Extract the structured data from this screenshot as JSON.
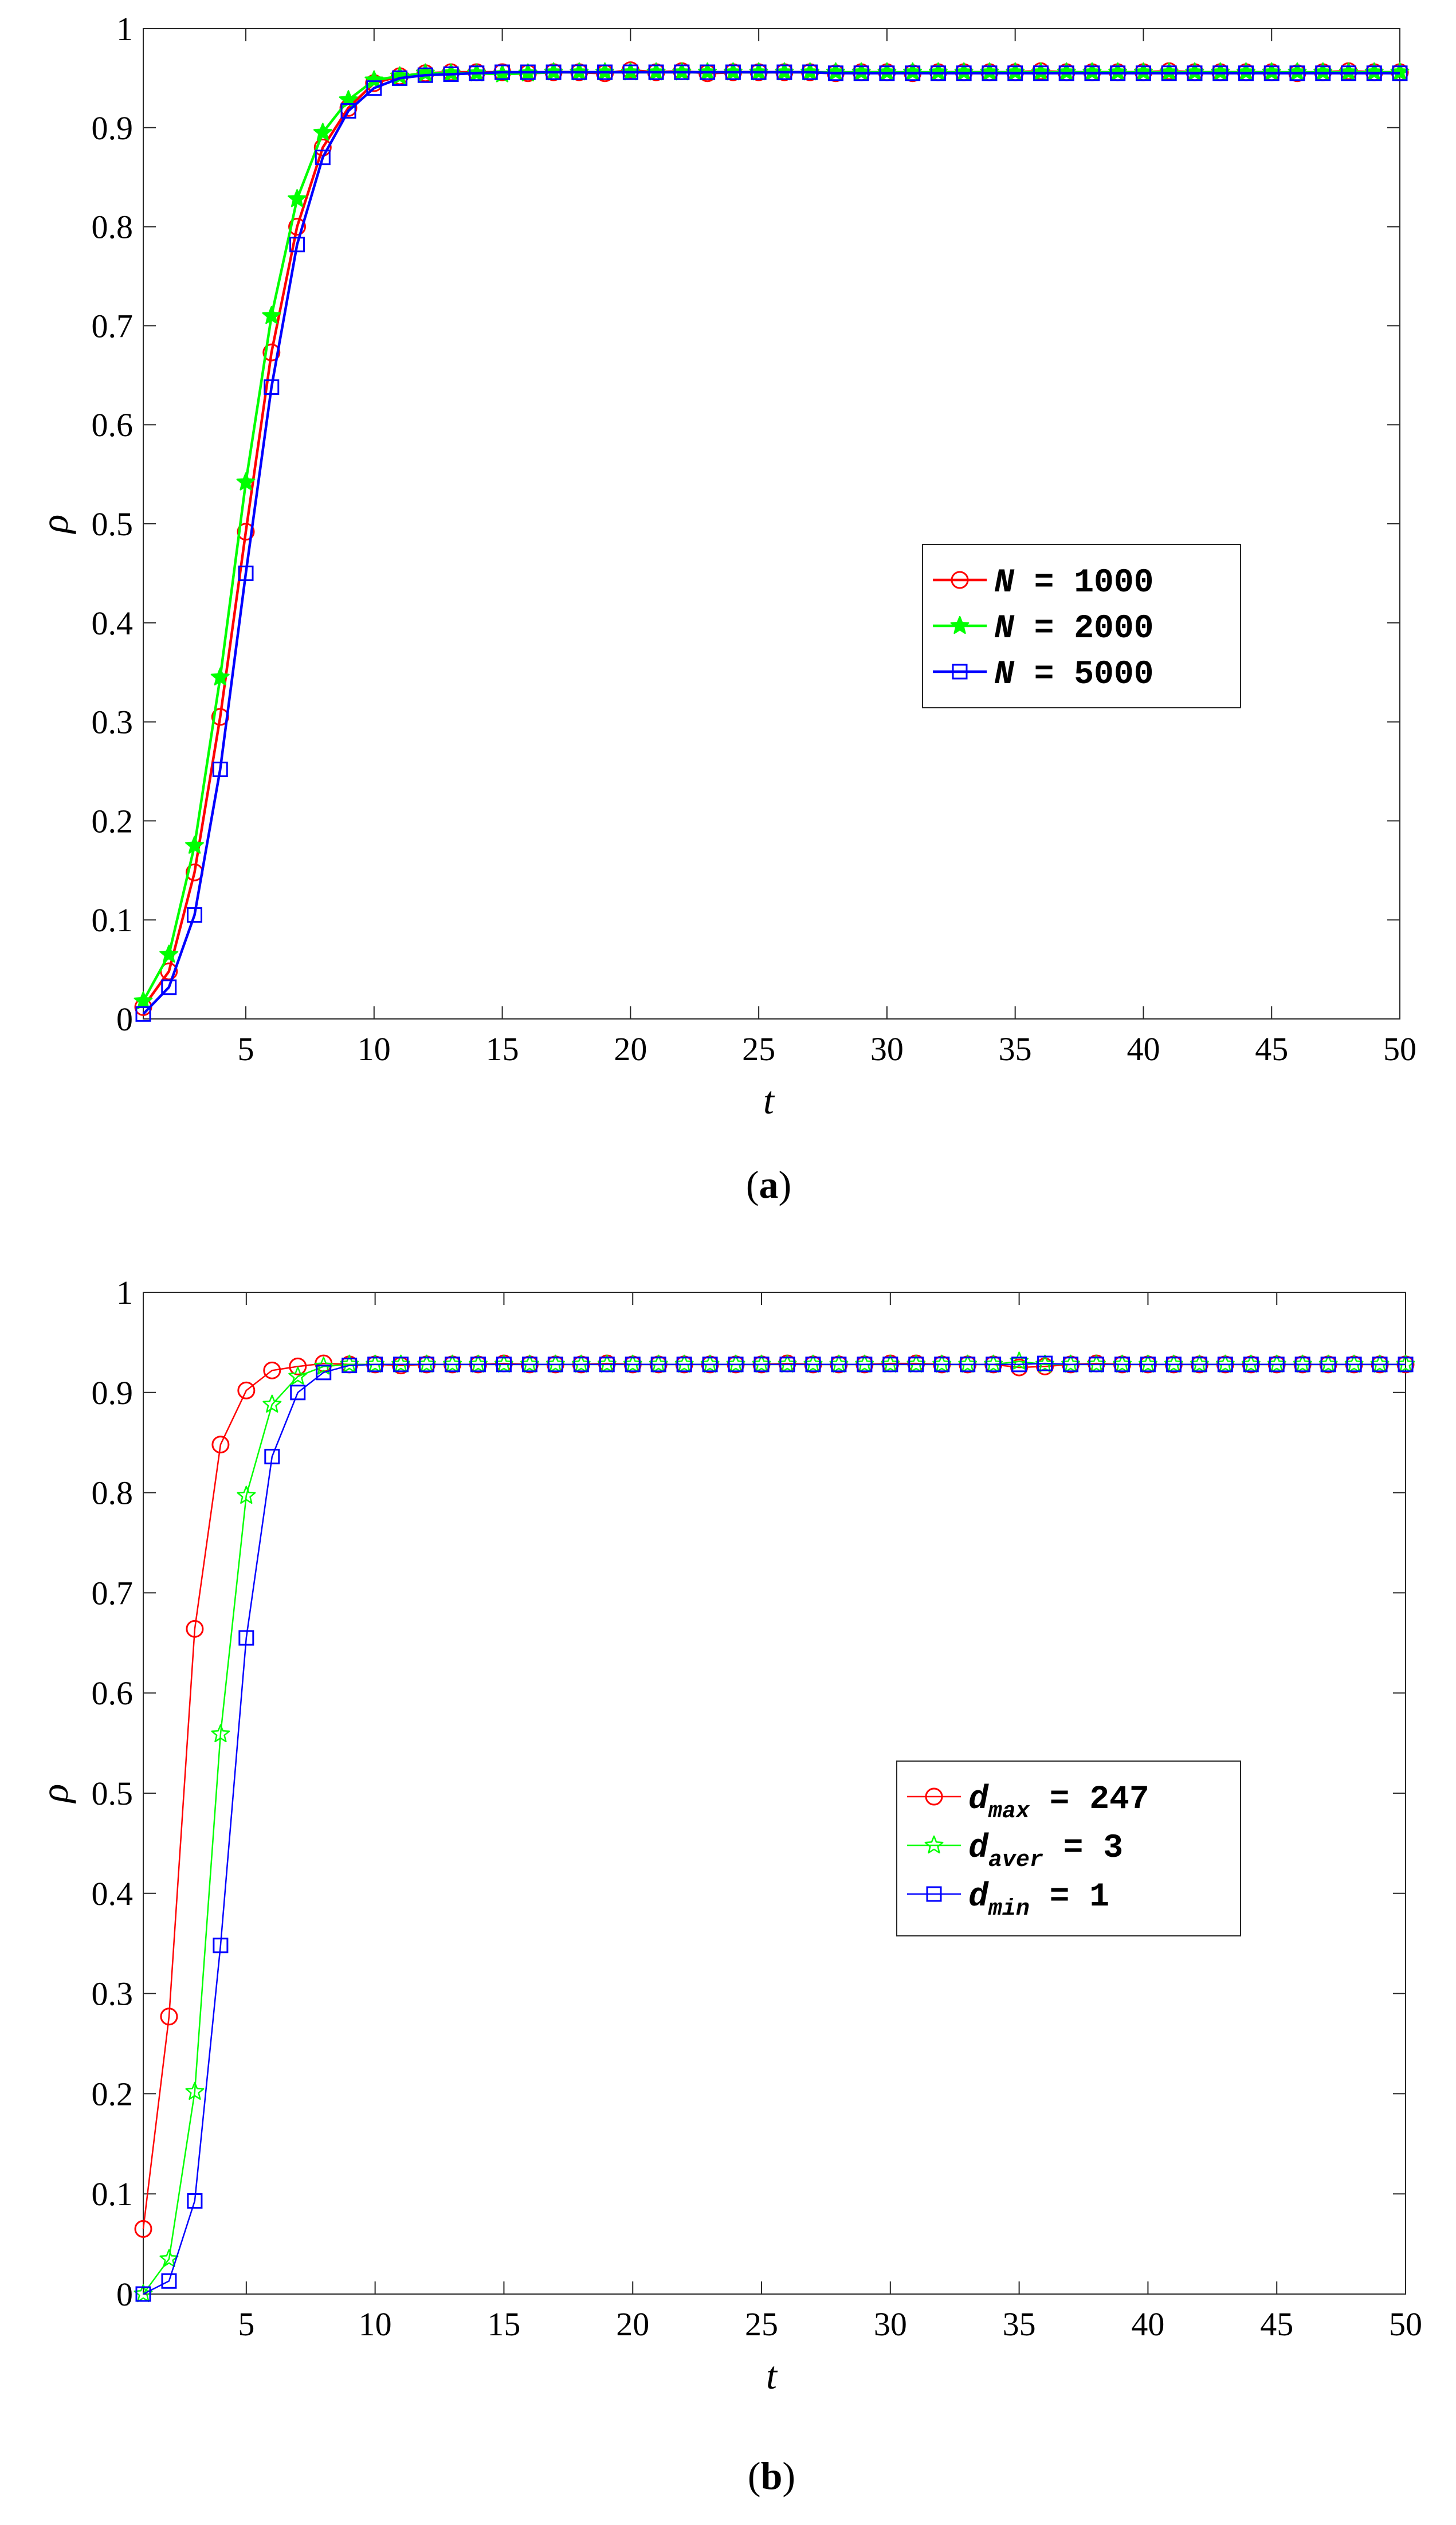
{
  "chart_data": [
    {
      "type": "line",
      "panel_label": "a",
      "xlabel": "t",
      "ylabel": "ρ",
      "xlim": [
        1,
        50
      ],
      "ylim": [
        0,
        1
      ],
      "xticks": [
        5,
        10,
        15,
        20,
        25,
        30,
        35,
        40,
        45,
        50
      ],
      "yticks": [
        0,
        0.1,
        0.2,
        0.3,
        0.4,
        0.5,
        0.6,
        0.7,
        0.8,
        0.9,
        1
      ],
      "grid": false,
      "legend_position": "right",
      "x": [
        1,
        2,
        3,
        4,
        5,
        6,
        7,
        8,
        9,
        10,
        11,
        12,
        13,
        14,
        15,
        16,
        17,
        18,
        19,
        20,
        21,
        22,
        23,
        24,
        25,
        26,
        27,
        28,
        29,
        30,
        31,
        32,
        33,
        34,
        35,
        36,
        37,
        38,
        39,
        40,
        41,
        42,
        43,
        44,
        45,
        46,
        47,
        48,
        49,
        50
      ],
      "series": [
        {
          "name": "N = 1000",
          "legend_var": "N",
          "legend_sub": "",
          "legend_value": "= 1000",
          "color": "#ff0000",
          "marker": "circle",
          "values": [
            0.012,
            0.048,
            0.148,
            0.305,
            0.492,
            0.673,
            0.8,
            0.88,
            0.92,
            0.945,
            0.952,
            0.955,
            0.956,
            0.956,
            0.956,
            0.955,
            0.956,
            0.956,
            0.955,
            0.958,
            0.956,
            0.957,
            0.955,
            0.956,
            0.956,
            0.956,
            0.956,
            0.955,
            0.956,
            0.956,
            0.955,
            0.956,
            0.956,
            0.956,
            0.956,
            0.957,
            0.956,
            0.956,
            0.956,
            0.956,
            0.957,
            0.956,
            0.956,
            0.956,
            0.956,
            0.955,
            0.956,
            0.957,
            0.956,
            0.956
          ]
        },
        {
          "name": "N = 2000",
          "legend_var": "N",
          "legend_sub": "",
          "legend_value": "= 2000",
          "color": "#00ff00",
          "marker": "star",
          "values": [
            0.018,
            0.065,
            0.175,
            0.345,
            0.542,
            0.71,
            0.828,
            0.895,
            0.928,
            0.948,
            0.952,
            0.955,
            0.955,
            0.955,
            0.954,
            0.955,
            0.956,
            0.956,
            0.956,
            0.956,
            0.956,
            0.956,
            0.956,
            0.956,
            0.956,
            0.956,
            0.956,
            0.956,
            0.956,
            0.956,
            0.956,
            0.956,
            0.956,
            0.956,
            0.956,
            0.956,
            0.956,
            0.956,
            0.956,
            0.956,
            0.956,
            0.956,
            0.956,
            0.956,
            0.956,
            0.956,
            0.956,
            0.956,
            0.956,
            0.956
          ]
        },
        {
          "name": "N = 5000",
          "legend_var": "N",
          "legend_sub": "",
          "legend_value": "= 5000",
          "color": "#0000ff",
          "marker": "square",
          "values": [
            0.005,
            0.032,
            0.105,
            0.252,
            0.45,
            0.638,
            0.782,
            0.87,
            0.917,
            0.94,
            0.95,
            0.953,
            0.954,
            0.955,
            0.956,
            0.956,
            0.956,
            0.956,
            0.956,
            0.956,
            0.956,
            0.956,
            0.956,
            0.956,
            0.956,
            0.956,
            0.956,
            0.955,
            0.955,
            0.955,
            0.955,
            0.955,
            0.955,
            0.955,
            0.955,
            0.955,
            0.955,
            0.955,
            0.955,
            0.955,
            0.955,
            0.955,
            0.955,
            0.955,
            0.955,
            0.955,
            0.955,
            0.955,
            0.955,
            0.955
          ]
        }
      ]
    },
    {
      "type": "line",
      "panel_label": "b",
      "xlabel": "t",
      "ylabel": "ρ",
      "xlim": [
        1,
        50
      ],
      "ylim": [
        0,
        1
      ],
      "xticks": [
        5,
        10,
        15,
        20,
        25,
        30,
        35,
        40,
        45,
        50
      ],
      "yticks": [
        0,
        0.1,
        0.2,
        0.3,
        0.4,
        0.5,
        0.6,
        0.7,
        0.8,
        0.9,
        1
      ],
      "grid": false,
      "legend_position": "right",
      "x": [
        1,
        2,
        3,
        4,
        5,
        6,
        7,
        8,
        9,
        10,
        11,
        12,
        13,
        14,
        15,
        16,
        17,
        18,
        19,
        20,
        21,
        22,
        23,
        24,
        25,
        26,
        27,
        28,
        29,
        30,
        31,
        32,
        33,
        34,
        35,
        36,
        37,
        38,
        39,
        40,
        41,
        42,
        43,
        44,
        45,
        46,
        47,
        48,
        49,
        50
      ],
      "series": [
        {
          "name": "d_max = 247",
          "legend_var": "d",
          "legend_sub": "max",
          "legend_value": "= 247",
          "color": "#ff0000",
          "marker": "circle",
          "values": [
            0.065,
            0.277,
            0.664,
            0.848,
            0.902,
            0.922,
            0.926,
            0.929,
            0.928,
            0.928,
            0.927,
            0.928,
            0.928,
            0.928,
            0.929,
            0.928,
            0.928,
            0.928,
            0.929,
            0.928,
            0.928,
            0.928,
            0.928,
            0.928,
            0.928,
            0.929,
            0.928,
            0.928,
            0.928,
            0.929,
            0.929,
            0.928,
            0.928,
            0.928,
            0.925,
            0.926,
            0.928,
            0.929,
            0.928,
            0.928,
            0.928,
            0.928,
            0.928,
            0.928,
            0.928,
            0.928,
            0.928,
            0.928,
            0.928,
            0.928
          ]
        },
        {
          "name": "d_aver = 3",
          "legend_var": "d",
          "legend_sub": "aver",
          "legend_value": "= 3",
          "color": "#00ff00",
          "marker": "star",
          "values": [
            0.0,
            0.035,
            0.202,
            0.559,
            0.797,
            0.888,
            0.916,
            0.926,
            0.928,
            0.928,
            0.928,
            0.928,
            0.928,
            0.928,
            0.928,
            0.928,
            0.928,
            0.928,
            0.928,
            0.928,
            0.928,
            0.928,
            0.928,
            0.928,
            0.928,
            0.928,
            0.928,
            0.928,
            0.928,
            0.928,
            0.928,
            0.928,
            0.928,
            0.928,
            0.931,
            0.928,
            0.928,
            0.928,
            0.928,
            0.928,
            0.928,
            0.928,
            0.928,
            0.928,
            0.928,
            0.928,
            0.928,
            0.928,
            0.928,
            0.928
          ]
        },
        {
          "name": "d_min = 1",
          "legend_var": "d",
          "legend_sub": "min",
          "legend_value": "= 1",
          "color": "#0000ff",
          "marker": "square",
          "values": [
            0.0,
            0.013,
            0.093,
            0.348,
            0.655,
            0.836,
            0.9,
            0.92,
            0.927,
            0.928,
            0.928,
            0.928,
            0.928,
            0.928,
            0.928,
            0.928,
            0.928,
            0.928,
            0.928,
            0.928,
            0.928,
            0.928,
            0.928,
            0.928,
            0.928,
            0.928,
            0.928,
            0.928,
            0.928,
            0.928,
            0.928,
            0.928,
            0.928,
            0.928,
            0.928,
            0.929,
            0.928,
            0.928,
            0.928,
            0.928,
            0.928,
            0.928,
            0.928,
            0.928,
            0.928,
            0.928,
            0.928,
            0.928,
            0.928,
            0.928
          ]
        }
      ]
    }
  ]
}
